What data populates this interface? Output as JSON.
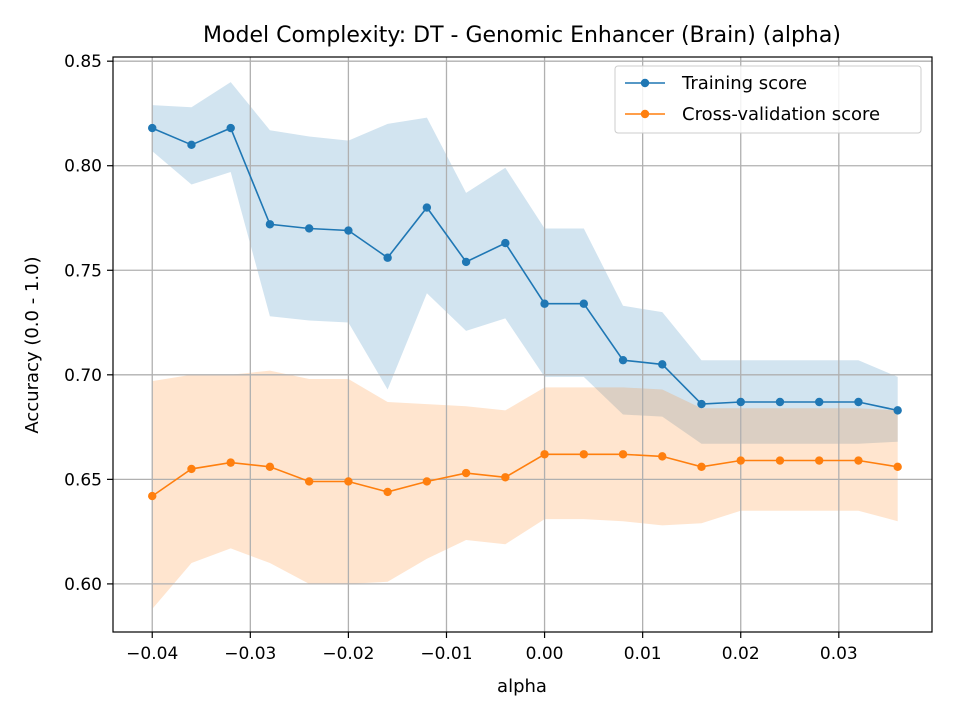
{
  "chart_data": {
    "type": "line",
    "title": "Model Complexity: DT - Genomic Enhancer (Brain) (alpha)",
    "xlabel": "alpha",
    "ylabel": "Accuracy (0.0 - 1.0)",
    "xlim": [
      -0.044,
      0.0395
    ],
    "ylim": [
      0.577,
      0.852
    ],
    "xticks": [
      -0.04,
      -0.03,
      -0.02,
      -0.01,
      0.0,
      0.01,
      0.02,
      0.03
    ],
    "xtick_labels": [
      "−0.04",
      "−0.03",
      "−0.02",
      "−0.01",
      "0.00",
      "0.01",
      "0.02",
      "0.03"
    ],
    "yticks": [
      0.6,
      0.65,
      0.7,
      0.75,
      0.8,
      0.85
    ],
    "ytick_labels": [
      "0.60",
      "0.65",
      "0.70",
      "0.75",
      "0.80",
      "0.85"
    ],
    "grid": true,
    "legend_position": "top-right",
    "x": [
      -0.04,
      -0.036,
      -0.032,
      -0.028,
      -0.024,
      -0.02,
      -0.016,
      -0.012,
      -0.008,
      -0.004,
      0.0,
      0.004,
      0.008,
      0.012,
      0.016,
      0.02,
      0.024,
      0.028,
      0.032,
      0.036
    ],
    "series": [
      {
        "name": "Training score",
        "color": "#1f77b4",
        "values": [
          0.818,
          0.81,
          0.818,
          0.772,
          0.77,
          0.769,
          0.756,
          0.78,
          0.754,
          0.763,
          0.734,
          0.734,
          0.707,
          0.705,
          0.686,
          0.687,
          0.687,
          0.687,
          0.687,
          0.683
        ],
        "band_upper": [
          0.829,
          0.828,
          0.84,
          0.817,
          0.814,
          0.812,
          0.82,
          0.823,
          0.787,
          0.799,
          0.77,
          0.77,
          0.733,
          0.73,
          0.707,
          0.707,
          0.707,
          0.707,
          0.707,
          0.699
        ],
        "band_lower": [
          0.807,
          0.791,
          0.797,
          0.728,
          0.726,
          0.725,
          0.693,
          0.739,
          0.721,
          0.727,
          0.699,
          0.699,
          0.681,
          0.68,
          0.667,
          0.667,
          0.667,
          0.667,
          0.667,
          0.668
        ]
      },
      {
        "name": "Cross-validation score",
        "color": "#ff7f0e",
        "values": [
          0.642,
          0.655,
          0.658,
          0.656,
          0.649,
          0.649,
          0.644,
          0.649,
          0.653,
          0.651,
          0.662,
          0.662,
          0.662,
          0.661,
          0.656,
          0.659,
          0.659,
          0.659,
          0.659,
          0.656
        ],
        "band_upper": [
          0.697,
          0.7,
          0.7,
          0.702,
          0.698,
          0.698,
          0.687,
          0.686,
          0.685,
          0.683,
          0.694,
          0.694,
          0.694,
          0.693,
          0.684,
          0.684,
          0.684,
          0.684,
          0.684,
          0.683
        ],
        "band_lower": [
          0.588,
          0.61,
          0.617,
          0.61,
          0.6,
          0.6,
          0.601,
          0.612,
          0.621,
          0.619,
          0.631,
          0.631,
          0.63,
          0.628,
          0.629,
          0.635,
          0.635,
          0.635,
          0.635,
          0.63
        ]
      }
    ]
  }
}
